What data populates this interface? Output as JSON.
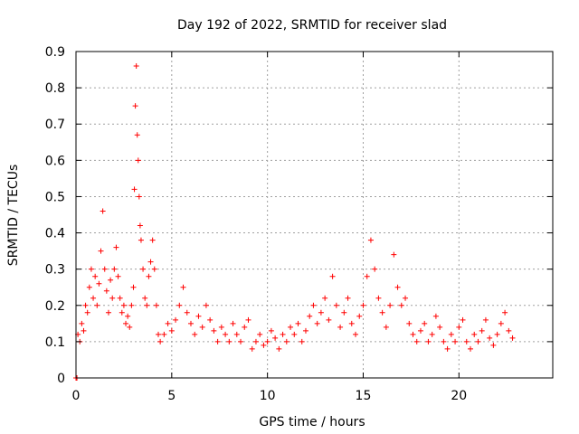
{
  "chart_data": {
    "type": "scatter",
    "title": "Day 192 of 2022, SRMTID for receiver slad",
    "xlabel": "GPS time / hours",
    "ylabel": "SRMTID / TECUs",
    "xlim": [
      0,
      24.9
    ],
    "ylim": [
      0,
      0.9
    ],
    "xticks": [
      0,
      5,
      10,
      15,
      20
    ],
    "xtick_labels": [
      "0",
      "5",
      "10",
      "15",
      "20"
    ],
    "yticks": [
      0,
      0.1,
      0.2,
      0.3,
      0.4,
      0.5,
      0.6,
      0.7,
      0.8,
      0.9
    ],
    "ytick_labels": [
      "0",
      "0.1",
      "0.2",
      "0.3",
      "0.4",
      "0.5",
      "0.6",
      "0.7",
      "0.8",
      "0.9"
    ],
    "grid": true,
    "marker": "+",
    "color": "#ff0000",
    "series": [
      {
        "name": "SRMTID",
        "points": [
          [
            0.0,
            0.0
          ],
          [
            0.05,
            0.0
          ],
          [
            0.1,
            0.12
          ],
          [
            0.2,
            0.1
          ],
          [
            0.3,
            0.15
          ],
          [
            0.4,
            0.13
          ],
          [
            0.5,
            0.2
          ],
          [
            0.6,
            0.18
          ],
          [
            0.7,
            0.25
          ],
          [
            0.8,
            0.3
          ],
          [
            0.9,
            0.22
          ],
          [
            1.0,
            0.28
          ],
          [
            1.1,
            0.2
          ],
          [
            1.2,
            0.26
          ],
          [
            1.3,
            0.35
          ],
          [
            1.4,
            0.46
          ],
          [
            1.5,
            0.3
          ],
          [
            1.6,
            0.24
          ],
          [
            1.7,
            0.18
          ],
          [
            1.8,
            0.27
          ],
          [
            1.9,
            0.22
          ],
          [
            2.0,
            0.3
          ],
          [
            2.1,
            0.36
          ],
          [
            2.2,
            0.28
          ],
          [
            2.3,
            0.22
          ],
          [
            2.4,
            0.18
          ],
          [
            2.5,
            0.2
          ],
          [
            2.6,
            0.15
          ],
          [
            2.7,
            0.17
          ],
          [
            2.8,
            0.14
          ],
          [
            2.9,
            0.2
          ],
          [
            3.0,
            0.25
          ],
          [
            3.05,
            0.52
          ],
          [
            3.1,
            0.75
          ],
          [
            3.15,
            0.86
          ],
          [
            3.2,
            0.67
          ],
          [
            3.25,
            0.6
          ],
          [
            3.3,
            0.5
          ],
          [
            3.35,
            0.42
          ],
          [
            3.4,
            0.38
          ],
          [
            3.5,
            0.3
          ],
          [
            3.6,
            0.22
          ],
          [
            3.7,
            0.2
          ],
          [
            3.8,
            0.28
          ],
          [
            3.9,
            0.32
          ],
          [
            4.0,
            0.38
          ],
          [
            4.1,
            0.3
          ],
          [
            4.2,
            0.2
          ],
          [
            4.3,
            0.12
          ],
          [
            4.4,
            0.1
          ],
          [
            4.6,
            0.12
          ],
          [
            4.8,
            0.15
          ],
          [
            5.0,
            0.13
          ],
          [
            5.2,
            0.16
          ],
          [
            5.4,
            0.2
          ],
          [
            5.6,
            0.25
          ],
          [
            5.8,
            0.18
          ],
          [
            6.0,
            0.15
          ],
          [
            6.2,
            0.12
          ],
          [
            6.4,
            0.17
          ],
          [
            6.6,
            0.14
          ],
          [
            6.8,
            0.2
          ],
          [
            7.0,
            0.16
          ],
          [
            7.2,
            0.13
          ],
          [
            7.4,
            0.1
          ],
          [
            7.6,
            0.14
          ],
          [
            7.8,
            0.12
          ],
          [
            8.0,
            0.1
          ],
          [
            8.2,
            0.15
          ],
          [
            8.4,
            0.12
          ],
          [
            8.6,
            0.1
          ],
          [
            8.8,
            0.14
          ],
          [
            9.0,
            0.16
          ],
          [
            9.2,
            0.08
          ],
          [
            9.4,
            0.1
          ],
          [
            9.6,
            0.12
          ],
          [
            9.8,
            0.09
          ],
          [
            10.0,
            0.1
          ],
          [
            10.2,
            0.13
          ],
          [
            10.4,
            0.11
          ],
          [
            10.6,
            0.08
          ],
          [
            10.8,
            0.12
          ],
          [
            11.0,
            0.1
          ],
          [
            11.2,
            0.14
          ],
          [
            11.4,
            0.12
          ],
          [
            11.6,
            0.15
          ],
          [
            11.8,
            0.1
          ],
          [
            12.0,
            0.13
          ],
          [
            12.2,
            0.17
          ],
          [
            12.4,
            0.2
          ],
          [
            12.6,
            0.15
          ],
          [
            12.8,
            0.18
          ],
          [
            13.0,
            0.22
          ],
          [
            13.2,
            0.16
          ],
          [
            13.4,
            0.28
          ],
          [
            13.6,
            0.2
          ],
          [
            13.8,
            0.14
          ],
          [
            14.0,
            0.18
          ],
          [
            14.2,
            0.22
          ],
          [
            14.4,
            0.15
          ],
          [
            14.6,
            0.12
          ],
          [
            14.8,
            0.17
          ],
          [
            15.0,
            0.2
          ],
          [
            15.2,
            0.28
          ],
          [
            15.4,
            0.38
          ],
          [
            15.6,
            0.3
          ],
          [
            15.8,
            0.22
          ],
          [
            16.0,
            0.18
          ],
          [
            16.2,
            0.14
          ],
          [
            16.4,
            0.2
          ],
          [
            16.6,
            0.34
          ],
          [
            16.8,
            0.25
          ],
          [
            17.0,
            0.2
          ],
          [
            17.2,
            0.22
          ],
          [
            17.4,
            0.15
          ],
          [
            17.6,
            0.12
          ],
          [
            17.8,
            0.1
          ],
          [
            18.0,
            0.13
          ],
          [
            18.2,
            0.15
          ],
          [
            18.4,
            0.1
          ],
          [
            18.6,
            0.12
          ],
          [
            18.8,
            0.17
          ],
          [
            19.0,
            0.14
          ],
          [
            19.2,
            0.1
          ],
          [
            19.4,
            0.08
          ],
          [
            19.6,
            0.12
          ],
          [
            19.8,
            0.1
          ],
          [
            20.0,
            0.14
          ],
          [
            20.2,
            0.16
          ],
          [
            20.4,
            0.1
          ],
          [
            20.6,
            0.08
          ],
          [
            20.8,
            0.12
          ],
          [
            21.0,
            0.1
          ],
          [
            21.2,
            0.13
          ],
          [
            21.4,
            0.16
          ],
          [
            21.6,
            0.11
          ],
          [
            21.8,
            0.09
          ],
          [
            22.0,
            0.12
          ],
          [
            22.2,
            0.15
          ],
          [
            22.4,
            0.18
          ],
          [
            22.6,
            0.13
          ],
          [
            22.8,
            0.11
          ]
        ]
      }
    ]
  }
}
